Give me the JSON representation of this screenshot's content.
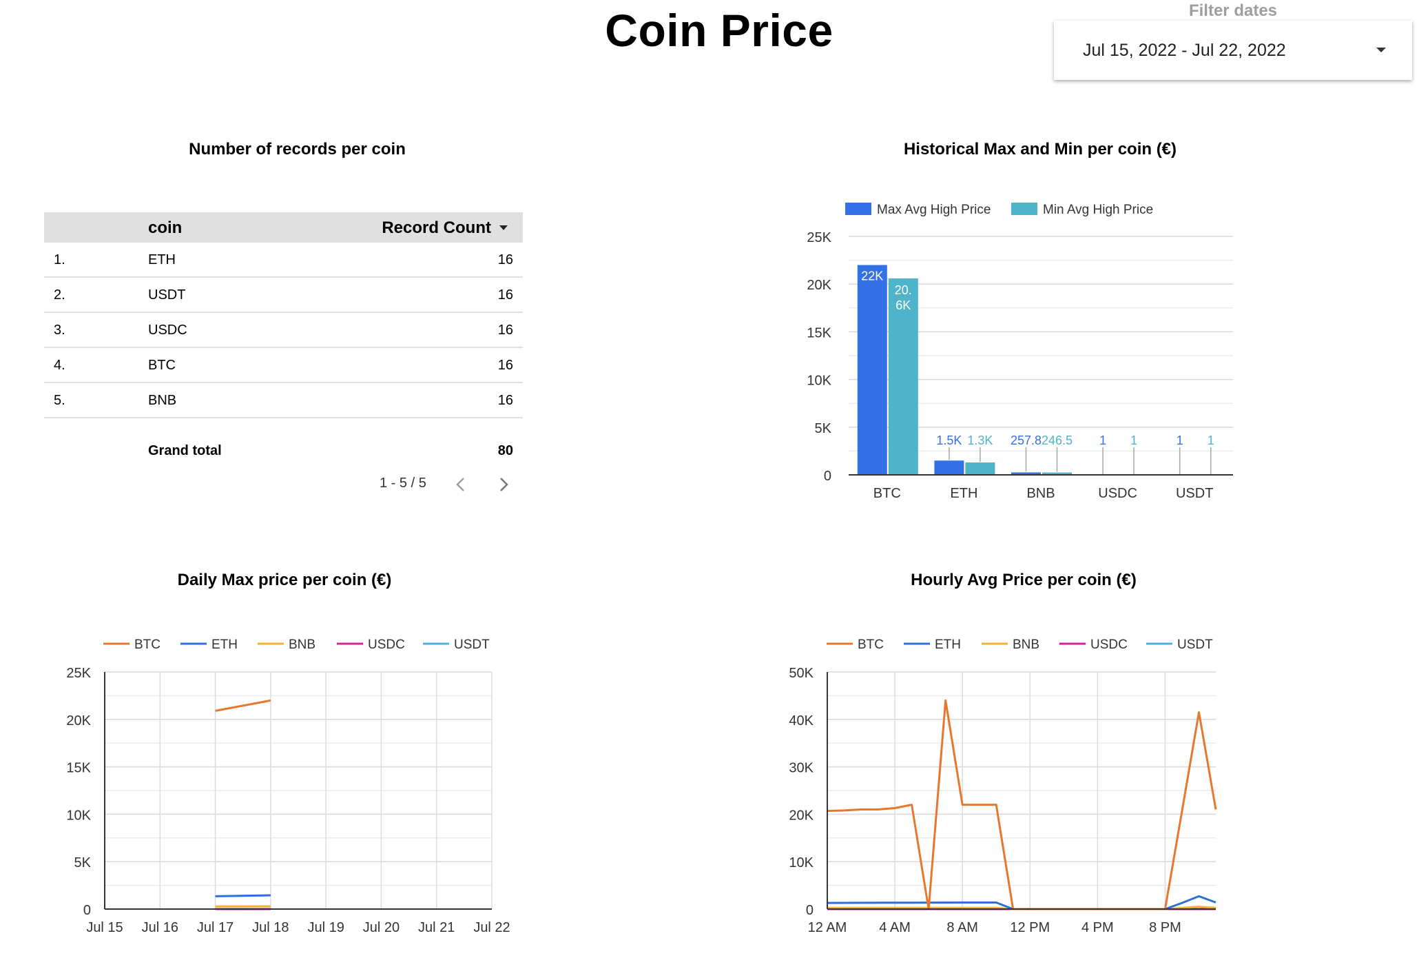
{
  "header": {
    "title": "Coin Price"
  },
  "filter": {
    "label": "Filter dates",
    "value": "Jul 15, 2022 - Jul 22, 2022"
  },
  "records_table": {
    "title": "Number of records per coin",
    "columns": [
      "coin",
      "Record Count"
    ],
    "rows": [
      {
        "index": "1.",
        "coin": "ETH",
        "count": "16"
      },
      {
        "index": "2.",
        "coin": "USDT",
        "count": "16"
      },
      {
        "index": "3.",
        "coin": "USDC",
        "count": "16"
      },
      {
        "index": "4.",
        "coin": "BTC",
        "count": "16"
      },
      {
        "index": "5.",
        "coin": "BNB",
        "count": "16"
      }
    ],
    "total_label": "Grand total",
    "total_value": "80",
    "pagination": "1 - 5 / 5"
  },
  "chart_data": [
    {
      "type": "bar",
      "title": "Historical Max and Min per coin (€)",
      "categories": [
        "BTC",
        "ETH",
        "BNB",
        "USDC",
        "USDT"
      ],
      "series": [
        {
          "name": "Max Avg High Price",
          "color": "#3571e6",
          "values": [
            22000,
            1500,
            257.8,
            1,
            1
          ],
          "labels": [
            "22K",
            "1.5K",
            "257.8",
            "1",
            "1"
          ]
        },
        {
          "name": "Min Avg High Price",
          "color": "#4fb3c9",
          "values": [
            20600,
            1300,
            246.5,
            1,
            1
          ],
          "labels": [
            "20.6K",
            "1.3K",
            "246.5",
            "1",
            "1"
          ]
        }
      ],
      "ylim": [
        0,
        25000
      ],
      "yticks": [
        "0",
        "5K",
        "10K",
        "15K",
        "20K",
        "25K"
      ],
      "legend": "top",
      "grid": true
    },
    {
      "type": "line",
      "title": "Daily Max price per coin (€)",
      "x": [
        "Jul 15",
        "Jul 16",
        "Jul 17",
        "Jul 18",
        "Jul 19",
        "Jul 20",
        "Jul 21",
        "Jul 22"
      ],
      "series": [
        {
          "name": "BTC",
          "color": "#e8772e",
          "values": [
            null,
            null,
            20900,
            22000,
            null,
            null,
            null,
            null
          ]
        },
        {
          "name": "ETH",
          "color": "#2f6fdb",
          "values": [
            null,
            null,
            1350,
            1450,
            null,
            null,
            null,
            null
          ]
        },
        {
          "name": "BNB",
          "color": "#f2b233",
          "values": [
            null,
            null,
            280,
            290,
            null,
            null,
            null,
            null
          ]
        },
        {
          "name": "USDC",
          "color": "#d61f9b",
          "values": [
            null,
            null,
            1,
            1,
            null,
            null,
            null,
            null
          ]
        },
        {
          "name": "USDT",
          "color": "#4fb3d9",
          "values": [
            null,
            null,
            1,
            1,
            null,
            null,
            null,
            null
          ]
        }
      ],
      "ylim": [
        0,
        25000
      ],
      "yticks": [
        "0",
        "5K",
        "10K",
        "15K",
        "20K",
        "25K"
      ],
      "legend": "top",
      "grid": true
    },
    {
      "type": "line",
      "title": "Hourly Avg Price per coin (€)",
      "xticks": [
        "12 AM",
        "4 AM",
        "8 AM",
        "12 PM",
        "4 PM",
        "8 PM"
      ],
      "x_hours": [
        0,
        1,
        2,
        3,
        4,
        5,
        6,
        7,
        8,
        9,
        10,
        11,
        12,
        13,
        14,
        15,
        16,
        17,
        18,
        19,
        20,
        21,
        22,
        23
      ],
      "series": [
        {
          "name": "BTC",
          "color": "#e8772e",
          "values": [
            20700,
            20800,
            21000,
            21000,
            21300,
            22000,
            0,
            44000,
            22000,
            22000,
            22000,
            0,
            0,
            0,
            0,
            0,
            0,
            0,
            0,
            0,
            0,
            20700,
            41500,
            21000
          ]
        },
        {
          "name": "ETH",
          "color": "#2f6fdb",
          "values": [
            1300,
            1310,
            1320,
            1330,
            1340,
            1350,
            1360,
            1370,
            1380,
            1380,
            1380,
            0,
            0,
            0,
            0,
            0,
            0,
            0,
            0,
            0,
            0,
            1300,
            2700,
            1400
          ]
        },
        {
          "name": "BNB",
          "color": "#f2b233",
          "values": [
            250,
            250,
            250,
            250,
            250,
            250,
            250,
            250,
            250,
            250,
            250,
            0,
            0,
            0,
            0,
            0,
            0,
            0,
            0,
            0,
            0,
            250,
            500,
            250
          ]
        },
        {
          "name": "USDC",
          "color": "#d61f9b",
          "values": [
            1,
            1,
            1,
            1,
            1,
            1,
            1,
            1,
            1,
            1,
            1,
            0,
            0,
            0,
            0,
            0,
            0,
            0,
            0,
            0,
            0,
            1,
            1,
            1
          ]
        },
        {
          "name": "USDT",
          "color": "#4fb3d9",
          "values": [
            1,
            1,
            1,
            1,
            1,
            1,
            1,
            1,
            1,
            1,
            1,
            0,
            0,
            0,
            0,
            0,
            0,
            0,
            0,
            0,
            0,
            1,
            1,
            1
          ]
        }
      ],
      "ylim": [
        0,
        50000
      ],
      "yticks": [
        "0",
        "10K",
        "20K",
        "30K",
        "40K",
        "50K"
      ],
      "legend": "top",
      "grid": true
    }
  ]
}
